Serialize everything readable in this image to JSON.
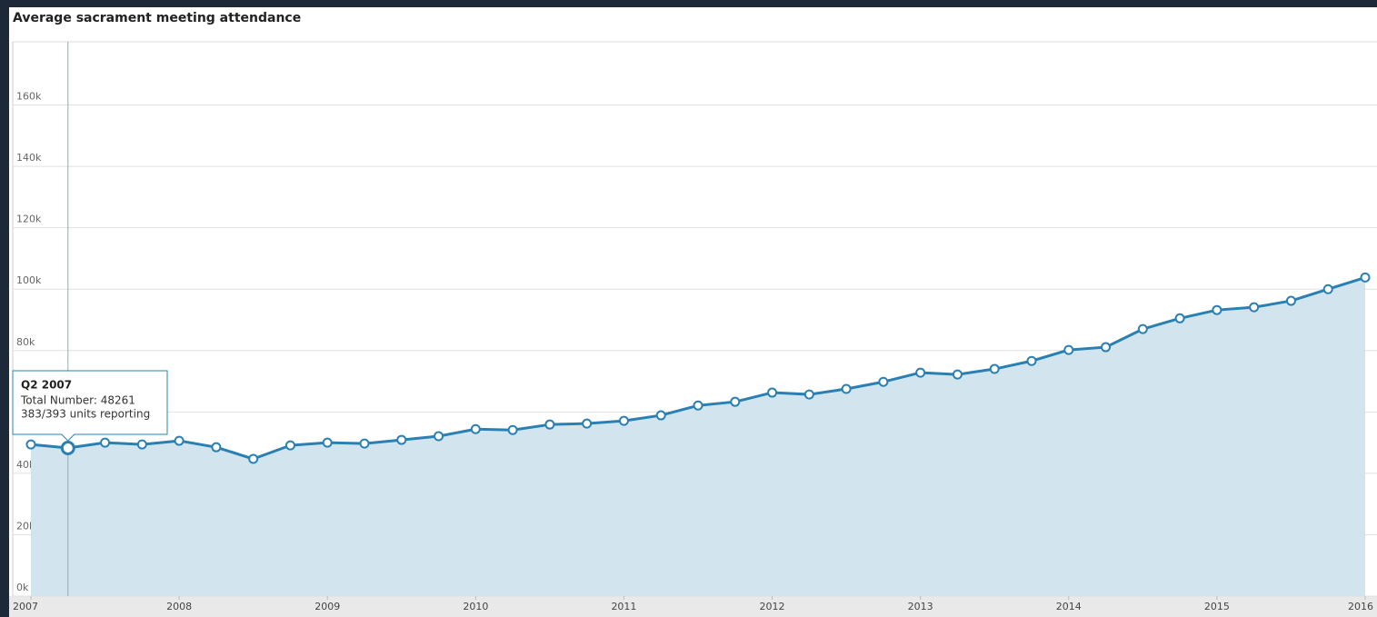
{
  "chart_data": {
    "type": "line",
    "title": "Average sacrament meeting attendance",
    "x": [
      2007,
      2007.25,
      2007.5,
      2007.75,
      2008,
      2008.25,
      2008.5,
      2008.75,
      2009,
      2009.25,
      2009.5,
      2009.75,
      2010,
      2010.25,
      2010.5,
      2010.75,
      2011,
      2011.25,
      2011.5,
      2011.75,
      2012,
      2012.25,
      2012.5,
      2012.75,
      2013,
      2013.25,
      2013.5,
      2013.75,
      2014,
      2014.25,
      2014.5,
      2014.75,
      2015,
      2015.25,
      2015.5,
      2015.75,
      2016
    ],
    "series": [
      {
        "name": "Total Number",
        "color": "#2a80b3",
        "fill": "#d2e5ef",
        "values": [
          49400,
          48261,
          50000,
          49400,
          50600,
          48500,
          44700,
          49100,
          50000,
          49700,
          50900,
          52100,
          54400,
          54100,
          55900,
          56200,
          57100,
          58900,
          62100,
          63300,
          66300,
          65700,
          67500,
          69800,
          72800,
          72200,
          74000,
          76600,
          80200,
          81100,
          87000,
          90500,
          93200,
          94100,
          96200,
          100000,
          103800
        ]
      }
    ],
    "xlim": [
      2007,
      2016
    ],
    "xticks": [
      2007,
      2008,
      2009,
      2010,
      2011,
      2012,
      2013,
      2014,
      2015,
      2016
    ],
    "ylim": [
      0,
      180000
    ],
    "yticks": [
      {
        "value": 0,
        "label": "0k"
      },
      {
        "value": 20000,
        "label": "20k"
      },
      {
        "value": 40000,
        "label": "40k"
      },
      {
        "value": 60000,
        "label": "60k"
      },
      {
        "value": 80000,
        "label": "80k"
      },
      {
        "value": 100000,
        "label": "100k"
      },
      {
        "value": 120000,
        "label": "120k"
      },
      {
        "value": 140000,
        "label": "140k"
      },
      {
        "value": 160000,
        "label": "160k"
      }
    ],
    "grid": true,
    "tooltip": {
      "index": 1,
      "title": "Q2 2007",
      "lines": [
        "Total Number: 48261",
        "383/393 units reporting"
      ]
    }
  }
}
